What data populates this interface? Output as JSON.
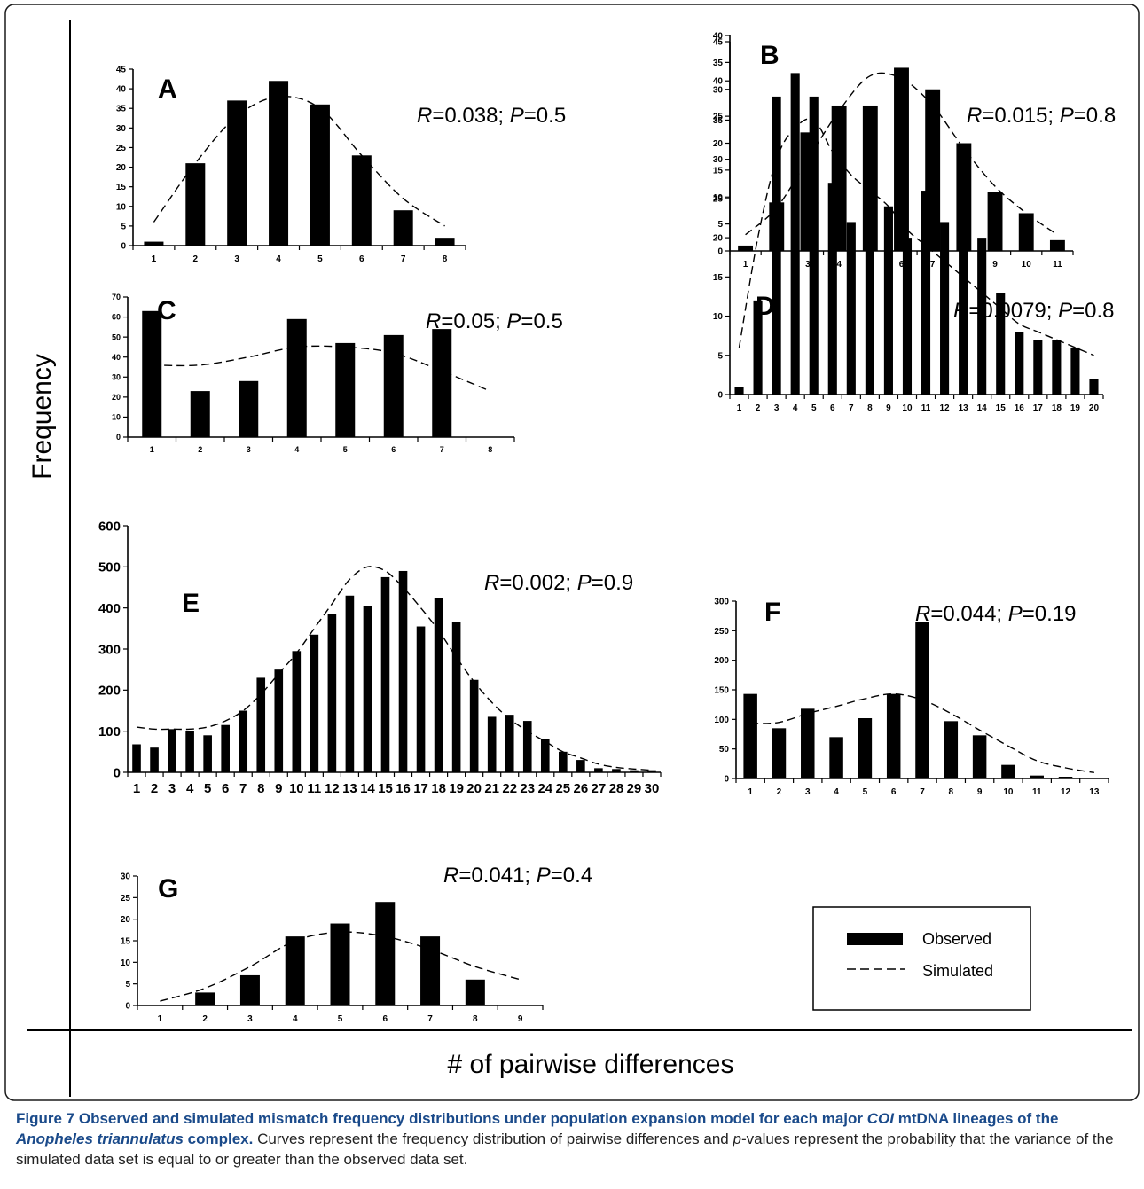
{
  "figure": {
    "y_axis_label": "Frequency",
    "x_axis_label": "# of pairwise differences",
    "legend": {
      "observed": "Observed",
      "simulated": "Simulated"
    }
  },
  "caption": {
    "bold_parts": [
      "Figure 7 Observed and simulated mismatch frequency distributions under population expansion model for each major ",
      "COI",
      " mtDNA lineages of the ",
      "Anopheles triannulatus",
      " complex."
    ],
    "rest_parts": [
      " Curves represent the frequency distribution of pairwise differences and ",
      "p",
      "-values represent the probability that the variance of the simulated data set is equal to or greater than the observed data set."
    ]
  },
  "chart_data": [
    {
      "label": "A",
      "type": "bar",
      "stat": {
        "R": "0.038",
        "P": "0.5"
      },
      "categories": [
        "1",
        "2",
        "3",
        "4",
        "5",
        "6",
        "7",
        "8"
      ],
      "ylim": [
        0,
        45
      ],
      "yticks": [
        0,
        5,
        10,
        15,
        20,
        25,
        30,
        35,
        40,
        45
      ],
      "series": [
        {
          "values": [
            1,
            21,
            37,
            42,
            36,
            23,
            9,
            2
          ]
        },
        {
          "values": [
            6,
            21,
            33,
            38,
            35,
            23,
            12,
            5
          ]
        }
      ]
    },
    {
      "label": "B",
      "type": "bar",
      "stat": {
        "R": "0.015",
        "P": "0.8"
      },
      "categories": [
        "1",
        "2",
        "3",
        "4",
        "5",
        "6",
        "7",
        "8",
        "9",
        "10",
        "11"
      ],
      "ylim": [
        0,
        40
      ],
      "yticks": [
        0,
        5,
        10,
        15,
        20,
        25,
        30,
        35,
        40
      ],
      "series": [
        {
          "values": [
            1,
            9,
            22,
            27,
            27,
            34,
            30,
            20,
            11,
            7,
            2
          ]
        },
        {
          "values": [
            3,
            8,
            17,
            26,
            32.5,
            32,
            27,
            19,
            12,
            7,
            3
          ]
        }
      ]
    },
    {
      "label": "C",
      "type": "bar",
      "stat": {
        "R": "0.05",
        "P": "0.5"
      },
      "categories": [
        "1",
        "2",
        "3",
        "4",
        "5",
        "6",
        "7",
        "8"
      ],
      "ylim": [
        0,
        70
      ],
      "yticks": [
        0,
        10,
        20,
        30,
        40,
        50,
        60,
        70
      ],
      "series": [
        {
          "values": [
            63,
            23,
            28,
            59,
            47,
            51,
            54,
            0
          ]
        },
        {
          "values": [
            36,
            36,
            40,
            45,
            45,
            42,
            33,
            23
          ]
        }
      ]
    },
    {
      "label": "D",
      "type": "bar",
      "stat": {
        "R": "0.0079",
        "P": "0.8"
      },
      "categories": [
        "1",
        "2",
        "3",
        "4",
        "5",
        "6",
        "7",
        "8",
        "9",
        "10",
        "11",
        "12",
        "13",
        "14",
        "15",
        "16",
        "17",
        "18",
        "19",
        "20"
      ],
      "ylim": [
        0,
        45
      ],
      "yticks": [
        0,
        5,
        10,
        15,
        20,
        25,
        30,
        35,
        40,
        45
      ],
      "series": [
        {
          "values": [
            1,
            12,
            38,
            41,
            38,
            27,
            22,
            22,
            24,
            20,
            26,
            22,
            22,
            20,
            13,
            8,
            7,
            7,
            6,
            2
          ]
        },
        {
          "values": [
            6,
            20,
            30,
            34,
            35,
            31,
            28,
            26,
            24,
            21,
            19,
            17,
            15,
            13,
            11,
            9,
            8,
            7,
            6,
            5
          ]
        }
      ]
    },
    {
      "label": "E",
      "type": "bar",
      "stat": {
        "R": "0.002",
        "P": "0.9"
      },
      "categories": [
        "1",
        "2",
        "3",
        "4",
        "5",
        "6",
        "7",
        "8",
        "9",
        "10",
        "11",
        "12",
        "13",
        "14",
        "15",
        "16",
        "17",
        "18",
        "19",
        "20",
        "21",
        "22",
        "23",
        "24",
        "25",
        "26",
        "27",
        "28",
        "29",
        "30"
      ],
      "ylim": [
        0,
        600
      ],
      "yticks": [
        0,
        100,
        200,
        300,
        400,
        500,
        600
      ],
      "series": [
        {
          "values": [
            68,
            60,
            105,
            100,
            90,
            115,
            150,
            230,
            250,
            295,
            335,
            385,
            430,
            405,
            475,
            490,
            355,
            425,
            365,
            225,
            135,
            140,
            125,
            80,
            50,
            30,
            10,
            8,
            5,
            5
          ]
        },
        {
          "values": [
            110,
            105,
            105,
            105,
            110,
            125,
            150,
            190,
            240,
            290,
            350,
            410,
            470,
            500,
            490,
            450,
            400,
            345,
            280,
            220,
            170,
            130,
            100,
            75,
            50,
            35,
            20,
            12,
            8,
            5
          ]
        }
      ]
    },
    {
      "label": "F",
      "type": "bar",
      "stat": {
        "R": "0.044",
        "P": "0.19"
      },
      "categories": [
        "1",
        "2",
        "3",
        "4",
        "5",
        "6",
        "7",
        "8",
        "9",
        "10",
        "11",
        "12",
        "13"
      ],
      "ylim": [
        0,
        300
      ],
      "yticks": [
        0,
        50,
        100,
        150,
        200,
        250,
        300
      ],
      "series": [
        {
          "values": [
            143,
            85,
            118,
            70,
            102,
            143,
            265,
            97,
            73,
            23,
            5,
            3,
            0
          ]
        },
        {
          "values": [
            93,
            95,
            110,
            122,
            135,
            143,
            133,
            110,
            82,
            55,
            30,
            18,
            10
          ]
        }
      ]
    },
    {
      "label": "G",
      "type": "bar",
      "stat": {
        "R": "0.041",
        "P": "0.4"
      },
      "categories": [
        "1",
        "2",
        "3",
        "4",
        "5",
        "6",
        "7",
        "8",
        "9"
      ],
      "ylim": [
        0,
        30
      ],
      "yticks": [
        0,
        5,
        10,
        15,
        20,
        25,
        30
      ],
      "series": [
        {
          "values": [
            0,
            3,
            7,
            16,
            19,
            24,
            16,
            6,
            0
          ]
        },
        {
          "values": [
            1,
            4,
            9,
            15,
            17,
            16,
            13,
            9,
            6
          ]
        }
      ]
    }
  ]
}
